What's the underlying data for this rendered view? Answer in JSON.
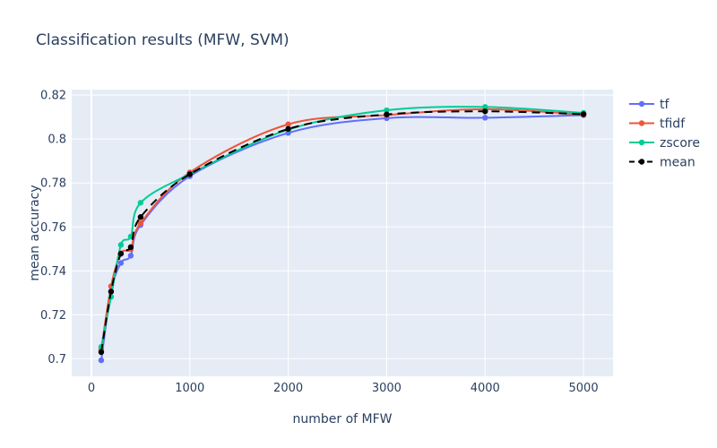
{
  "chart_data": {
    "type": "line",
    "title": "Classification results (MFW, SVM)",
    "xlabel": "number of MFW",
    "ylabel": "mean accuracy",
    "xlim": [
      -200,
      5300
    ],
    "ylim": [
      0.692,
      0.8225
    ],
    "x_ticks": [
      0,
      1000,
      2000,
      3000,
      4000,
      5000
    ],
    "x_tick_labels": [
      "0",
      "1000",
      "2000",
      "3000",
      "4000",
      "5000"
    ],
    "y_ticks": [
      0.7,
      0.72,
      0.74,
      0.76,
      0.78,
      0.8,
      0.82
    ],
    "y_tick_labels": [
      "0.7",
      "0.72",
      "0.74",
      "0.76",
      "0.78",
      "0.8",
      "0.82"
    ],
    "grid": true,
    "legend_position": "top-right-outside",
    "x": [
      100,
      200,
      300,
      400,
      500,
      1000,
      2000,
      3000,
      4000,
      5000
    ],
    "series": [
      {
        "name": "tf",
        "color": "#636efa",
        "dash": "solid",
        "values": [
          0.6993,
          0.7305,
          0.7436,
          0.7469,
          0.7609,
          0.7831,
          0.8028,
          0.8095,
          0.8097,
          0.8109
        ]
      },
      {
        "name": "tfidf",
        "color": "#ef553b",
        "dash": "solid",
        "values": [
          0.7043,
          0.733,
          0.748,
          0.7499,
          0.7617,
          0.7848,
          0.8067,
          0.8109,
          0.8136,
          0.8111
        ]
      },
      {
        "name": "zscore",
        "color": "#00cc96",
        "dash": "solid",
        "values": [
          0.7054,
          0.7282,
          0.7518,
          0.7556,
          0.771,
          0.7841,
          0.8043,
          0.8131,
          0.8146,
          0.8119
        ]
      },
      {
        "name": "mean",
        "color": "#000000",
        "dash": "dash",
        "values": [
          0.703,
          0.7306,
          0.7478,
          0.7508,
          0.7645,
          0.784,
          0.8046,
          0.8112,
          0.8126,
          0.8113
        ]
      }
    ]
  }
}
